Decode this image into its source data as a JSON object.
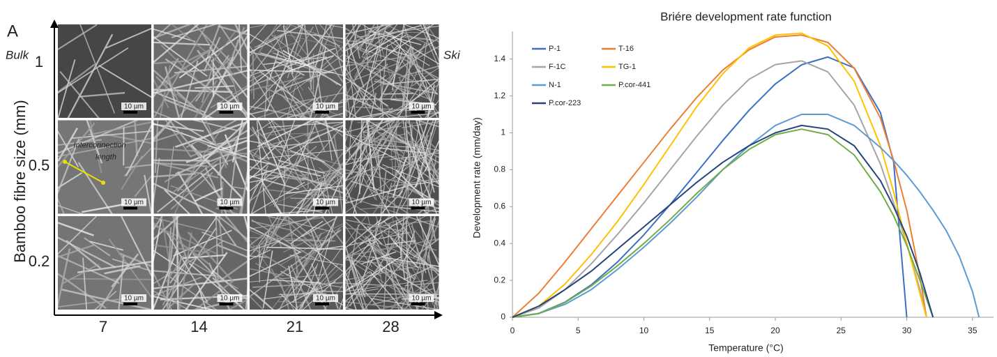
{
  "figure_a": {
    "panel_label": "A",
    "left_label": "Bulk",
    "right_label": "Ski",
    "y_label": "Bamboo fibre size (mm)",
    "rows": [
      "1",
      "0.5",
      "0.2"
    ],
    "columns": [
      "7",
      "14",
      "21",
      "28"
    ],
    "scale_bar": "10 µm",
    "annotation": [
      "Interconnection",
      "length"
    ]
  },
  "chart_data": {
    "type": "line",
    "title": "Briére development rate function",
    "x_label": "Temperature (°C)",
    "y_label": "Development rate (mm/day)",
    "x": [
      0,
      2,
      4,
      6,
      8,
      10,
      12,
      14,
      16,
      18,
      20,
      22,
      24,
      26,
      28,
      29,
      30,
      31,
      31.5,
      32,
      33,
      34,
      35,
      35.5
    ],
    "series": [
      {
        "name": "P-1",
        "color": "#3a6fc4",
        "values": [
          0,
          0.021,
          0.082,
          0.176,
          0.3,
          0.447,
          0.611,
          0.784,
          0.958,
          1.122,
          1.265,
          1.369,
          1.411,
          1.352,
          1.109,
          0.841,
          0,
          null,
          null,
          null,
          null,
          null,
          null,
          null
        ]
      },
      {
        "name": "T-16",
        "color": "#ed7d31",
        "values": [
          0,
          0.13,
          0.3,
          0.48,
          0.66,
          0.84,
          1.02,
          1.19,
          1.34,
          1.45,
          1.52,
          1.53,
          1.49,
          1.35,
          1.08,
          0.85,
          0.58,
          0.22,
          0,
          null,
          null,
          null,
          null,
          null
        ]
      },
      {
        "name": "F-1C",
        "color": "#a5a5a5",
        "values": [
          0,
          0.05,
          0.15,
          0.29,
          0.45,
          0.62,
          0.8,
          0.98,
          1.15,
          1.29,
          1.37,
          1.39,
          1.33,
          1.15,
          0.83,
          0.62,
          0.4,
          0.15,
          0,
          null,
          null,
          null,
          null,
          null
        ]
      },
      {
        "name": "TG-1",
        "color": "#ffc000",
        "values": [
          0,
          0.06,
          0.18,
          0.34,
          0.52,
          0.72,
          0.93,
          1.14,
          1.32,
          1.46,
          1.53,
          1.54,
          1.47,
          1.28,
          0.93,
          0.68,
          0.4,
          0.13,
          0,
          null,
          null,
          null,
          null,
          null
        ]
      },
      {
        "name": "N-1",
        "color": "#5b9bd5",
        "values": [
          0,
          0.02,
          0.07,
          0.15,
          0.26,
          0.38,
          0.51,
          0.65,
          0.8,
          0.93,
          1.04,
          1.1,
          1.1,
          1.04,
          0.92,
          0.85,
          0.77,
          0.68,
          0.63,
          0.58,
          0.47,
          0.33,
          0.14,
          0
        ]
      },
      {
        "name": "P.cor-441",
        "color": "#70ad47",
        "values": [
          0,
          0.02,
          0.08,
          0.17,
          0.28,
          0.4,
          0.53,
          0.67,
          0.8,
          0.91,
          0.99,
          1.02,
          0.99,
          0.88,
          0.68,
          0.55,
          0.39,
          0.2,
          0.1,
          0,
          null,
          null,
          null,
          null
        ]
      },
      {
        "name": "P.cor-223",
        "color": "#264478",
        "values": [
          0,
          0.06,
          0.15,
          0.25,
          0.37,
          0.49,
          0.61,
          0.73,
          0.84,
          0.93,
          1.0,
          1.04,
          1.02,
          0.93,
          0.74,
          0.6,
          0.44,
          0.24,
          0.12,
          0,
          null,
          null,
          null,
          null
        ]
      }
    ],
    "xlim": [
      0,
      36.6
    ],
    "xticks": [
      0,
      5,
      10,
      15,
      20,
      25,
      30,
      35
    ],
    "ylim": [
      0,
      1.55
    ],
    "yticks": [
      0,
      0.2,
      0.4,
      0.6,
      0.8,
      1,
      1.2,
      1.4
    ],
    "legend": "upper left",
    "grid": false
  }
}
